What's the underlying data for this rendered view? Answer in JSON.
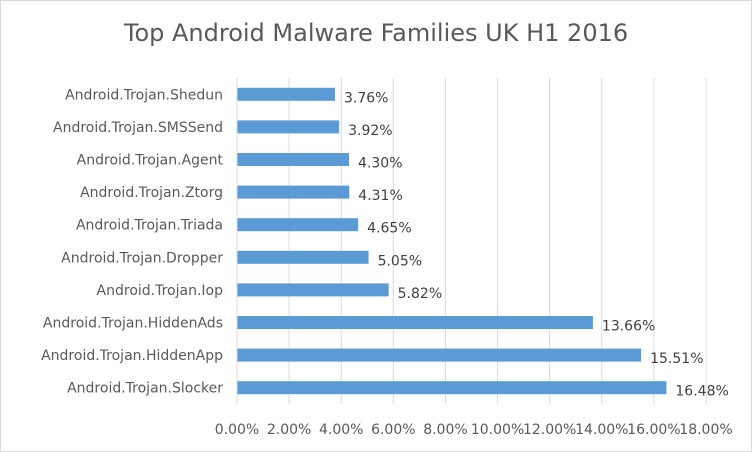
{
  "chart_data": {
    "type": "bar",
    "orientation": "horizontal",
    "title": "Top Android Malware Families UK H1 2016",
    "xlabel": "",
    "ylabel": "",
    "categories": [
      "Android.Trojan.Shedun",
      "Android.Trojan.SMSSend",
      "Android.Trojan.Agent",
      "Android.Trojan.Ztorg",
      "Android.Trojan.Triada",
      "Android.Trojan.Dropper",
      "Android.Trojan.Iop",
      "Android.Trojan.HiddenAds",
      "Android.Trojan.HiddenApp",
      "Android.Trojan.Slocker"
    ],
    "values": [
      3.76,
      3.92,
      4.3,
      4.31,
      4.65,
      5.05,
      5.82,
      13.66,
      15.51,
      16.48
    ],
    "value_labels": [
      "3.76%",
      "3.92%",
      "4.30%",
      "4.31%",
      "4.65%",
      "5.05%",
      "5.82%",
      "13.66%",
      "15.51%",
      "16.48%"
    ],
    "xlim": [
      0,
      18
    ],
    "x_ticks": [
      0,
      2,
      4,
      6,
      8,
      10,
      12,
      14,
      16,
      18
    ],
    "x_tick_labels": [
      "0.00%",
      "2.00%",
      "4.00%",
      "6.00%",
      "8.00%",
      "10.00%",
      "12.00%",
      "14.00%",
      "16.00%",
      "18.00%"
    ],
    "grid": true,
    "legend": "none",
    "bar_color": "#5b9bd5",
    "grid_color": "#d9d9d9"
  }
}
